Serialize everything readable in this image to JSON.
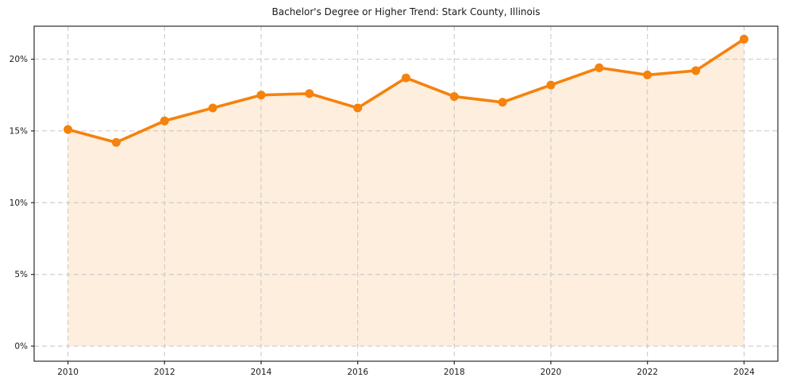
{
  "chart_data": {
    "type": "line",
    "title": "Bachelor's Degree or Higher Trend: Stark County, Illinois",
    "xlabel": "",
    "ylabel": "",
    "x": [
      2010,
      2011,
      2012,
      2013,
      2014,
      2015,
      2016,
      2017,
      2018,
      2019,
      2020,
      2021,
      2022,
      2023,
      2024
    ],
    "values": [
      15.1,
      14.2,
      15.7,
      16.6,
      17.5,
      17.6,
      16.6,
      18.7,
      17.4,
      17.0,
      18.2,
      19.4,
      18.9,
      19.2,
      21.4
    ],
    "value_unit": "%",
    "area_fill": true,
    "area_baseline": 0,
    "marker": "circle",
    "grid": true,
    "grid_style": "dashed",
    "legend_position": "none",
    "xtick_values": [
      2010,
      2012,
      2014,
      2016,
      2018,
      2020,
      2022,
      2024
    ],
    "xtick_labels": [
      "2010",
      "2012",
      "2014",
      "2016",
      "2018",
      "2020",
      "2022",
      "2024"
    ],
    "ytick_values": [
      0,
      5,
      10,
      15,
      20
    ],
    "ytick_labels": [
      "0%",
      "5%",
      "10%",
      "15%",
      "20%"
    ],
    "xlim": [
      2009.3,
      2024.7
    ],
    "ylim": [
      -1.05,
      22.3
    ],
    "colors": {
      "line": "#f5820d",
      "marker": "#f5820d",
      "area": "#fdeedd",
      "grid": "#c6c6c6",
      "axis": "#2b2b2b",
      "text": "#1a1a1a",
      "background": "#ffffff"
    }
  }
}
